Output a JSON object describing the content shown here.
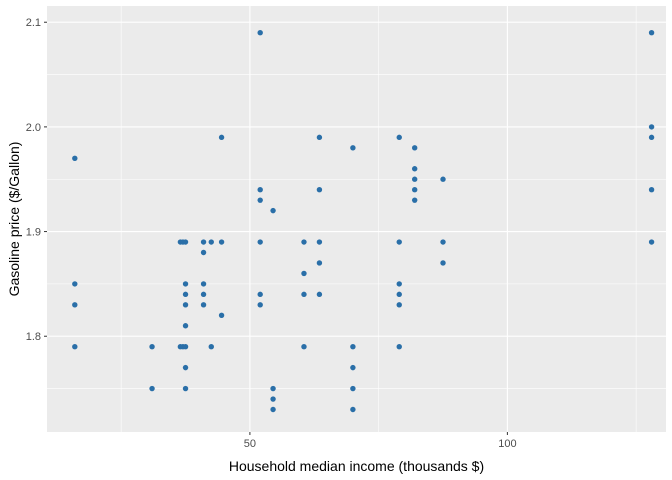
{
  "chart_data": {
    "type": "scatter",
    "title": "",
    "xlabel": "Household median income (thousands $)",
    "ylabel": "Gasoline price ($/Gallon)",
    "xlim": [
      10.6,
      130.8
    ],
    "ylim": [
      1.7085,
      2.1155
    ],
    "x_ticks": [
      50,
      100
    ],
    "x_minor_ticks": [
      25,
      75,
      125
    ],
    "y_ticks": [
      1.8,
      1.9,
      2.0,
      2.1
    ],
    "y_minor_ticks": [
      1.75,
      1.85,
      1.95,
      2.05
    ],
    "x_tick_labels": [
      "50",
      "100"
    ],
    "y_tick_labels": [
      "1.8",
      "1.9",
      "2.0",
      "2.1"
    ],
    "grid": true,
    "panel_background": "#ebebeb",
    "grid_color": "#ffffff",
    "point_color": "#2a6fa8",
    "points": [
      {
        "x": 16,
        "y": 1.97
      },
      {
        "x": 16,
        "y": 1.85
      },
      {
        "x": 16,
        "y": 1.83
      },
      {
        "x": 16,
        "y": 1.79
      },
      {
        "x": 31,
        "y": 1.79
      },
      {
        "x": 31,
        "y": 1.75
      },
      {
        "x": 36.5,
        "y": 1.89
      },
      {
        "x": 36.5,
        "y": 1.79
      },
      {
        "x": 37,
        "y": 1.89
      },
      {
        "x": 37,
        "y": 1.79
      },
      {
        "x": 37.5,
        "y": 1.89
      },
      {
        "x": 37.5,
        "y": 1.85
      },
      {
        "x": 37.5,
        "y": 1.84
      },
      {
        "x": 37.5,
        "y": 1.83
      },
      {
        "x": 37.5,
        "y": 1.81
      },
      {
        "x": 37.5,
        "y": 1.79
      },
      {
        "x": 37.5,
        "y": 1.77
      },
      {
        "x": 37.5,
        "y": 1.75
      },
      {
        "x": 41,
        "y": 1.89
      },
      {
        "x": 41,
        "y": 1.88
      },
      {
        "x": 41,
        "y": 1.85
      },
      {
        "x": 41,
        "y": 1.84
      },
      {
        "x": 41,
        "y": 1.83
      },
      {
        "x": 42.5,
        "y": 1.89
      },
      {
        "x": 42.5,
        "y": 1.79
      },
      {
        "x": 44.5,
        "y": 1.99
      },
      {
        "x": 44.5,
        "y": 1.89
      },
      {
        "x": 44.5,
        "y": 1.82
      },
      {
        "x": 52,
        "y": 2.09
      },
      {
        "x": 52,
        "y": 1.94
      },
      {
        "x": 52,
        "y": 1.93
      },
      {
        "x": 52,
        "y": 1.89
      },
      {
        "x": 52,
        "y": 1.84
      },
      {
        "x": 52,
        "y": 1.83
      },
      {
        "x": 54.5,
        "y": 1.92
      },
      {
        "x": 54.5,
        "y": 1.75
      },
      {
        "x": 54.5,
        "y": 1.74
      },
      {
        "x": 54.5,
        "y": 1.73
      },
      {
        "x": 60.5,
        "y": 1.89
      },
      {
        "x": 60.5,
        "y": 1.86
      },
      {
        "x": 60.5,
        "y": 1.84
      },
      {
        "x": 60.5,
        "y": 1.79
      },
      {
        "x": 63.5,
        "y": 1.99
      },
      {
        "x": 63.5,
        "y": 1.94
      },
      {
        "x": 63.5,
        "y": 1.89
      },
      {
        "x": 63.5,
        "y": 1.87
      },
      {
        "x": 63.5,
        "y": 1.84
      },
      {
        "x": 70,
        "y": 1.98
      },
      {
        "x": 70,
        "y": 1.79
      },
      {
        "x": 70,
        "y": 1.77
      },
      {
        "x": 70,
        "y": 1.75
      },
      {
        "x": 70,
        "y": 1.73
      },
      {
        "x": 79,
        "y": 1.99
      },
      {
        "x": 79,
        "y": 1.89
      },
      {
        "x": 79,
        "y": 1.85
      },
      {
        "x": 79,
        "y": 1.84
      },
      {
        "x": 79,
        "y": 1.83
      },
      {
        "x": 79,
        "y": 1.79
      },
      {
        "x": 82,
        "y": 1.98
      },
      {
        "x": 82,
        "y": 1.96
      },
      {
        "x": 82,
        "y": 1.95
      },
      {
        "x": 82,
        "y": 1.94
      },
      {
        "x": 82,
        "y": 1.93
      },
      {
        "x": 87.5,
        "y": 1.95
      },
      {
        "x": 87.5,
        "y": 1.89
      },
      {
        "x": 87.5,
        "y": 1.87
      },
      {
        "x": 128,
        "y": 2.09
      },
      {
        "x": 128,
        "y": 2.0
      },
      {
        "x": 128,
        "y": 1.99
      },
      {
        "x": 128,
        "y": 1.94
      },
      {
        "x": 128,
        "y": 1.89
      }
    ]
  }
}
